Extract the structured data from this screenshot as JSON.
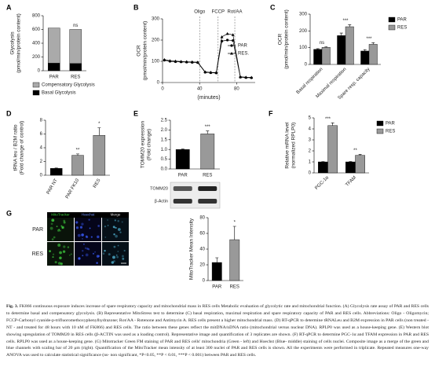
{
  "chart_data": [
    {
      "type": "bar",
      "stacked": true,
      "panel_label": "A",
      "ylabel": [
        "Glycolysis",
        "(pmol/min/protein content)"
      ],
      "categories": [
        "PAR",
        "RES"
      ],
      "ylim": [
        0,
        800
      ],
      "yticks": [
        0,
        200,
        400,
        600,
        800
      ],
      "series": [
        {
          "name": "Compensatory Glycolysis",
          "color": "#aaaaaa",
          "values": [
            510,
            495
          ],
          "annotations": [
            null,
            "ns"
          ]
        },
        {
          "name": "Basal Glycolysis",
          "color": "#000000",
          "values": [
            110,
            105
          ],
          "annotations": [
            null,
            "ns"
          ]
        }
      ]
    },
    {
      "type": "line",
      "panel_label": "B",
      "ylabel": [
        "OCR",
        "(pmol/min/protein content)"
      ],
      "xlabel": "(minutes)",
      "xlim": [
        0,
        100
      ],
      "xticks": [
        0,
        40,
        80
      ],
      "ylim": [
        0,
        300
      ],
      "yticks": [
        0,
        100,
        200,
        300
      ],
      "events": [
        {
          "x": 40,
          "label": "Oligo"
        },
        {
          "x": 60,
          "label": "FCCP"
        },
        {
          "x": 78,
          "label": "Rot/AA"
        }
      ],
      "x": [
        2,
        8,
        14,
        20,
        26,
        32,
        38,
        46,
        52,
        58,
        64,
        70,
        76,
        84,
        90,
        96
      ],
      "series": [
        {
          "name": "PAR",
          "color": "#000000",
          "marker": "circle",
          "values": [
            105,
            100,
            98,
            97,
            96,
            95,
            94,
            48,
            46,
            45,
            195,
            200,
            198,
            25,
            23,
            22
          ]
        },
        {
          "name": "RES.",
          "color": "#000000",
          "marker": "triangle",
          "values": [
            108,
            103,
            101,
            99,
            98,
            97,
            96,
            50,
            48,
            47,
            215,
            230,
            225,
            27,
            25,
            24
          ]
        }
      ]
    },
    {
      "type": "bar",
      "panel_label": "C",
      "ylabel": [
        "OCR",
        "(pmol/min/protein content)"
      ],
      "categories": [
        "Basal respiration",
        "Maximal respiration",
        "Spare resp. capacity"
      ],
      "ylim": [
        0,
        300
      ],
      "yticks": [
        0,
        100,
        200,
        300
      ],
      "annotations": [
        "ns",
        "***",
        "***"
      ],
      "series": [
        {
          "name": "PAR",
          "color": "#000000",
          "values": [
            90,
            172,
            80
          ],
          "errors": [
            4,
            15,
            8
          ]
        },
        {
          "name": "RES",
          "color": "#999999",
          "values": [
            102,
            225,
            120
          ],
          "errors": [
            4,
            12,
            10
          ]
        }
      ]
    },
    {
      "type": "bar",
      "panel_label": "D",
      "ylabel": [
        "tRNA leu / B2M ratio",
        "(Fold change of control)"
      ],
      "categories": [
        "PAR NT",
        "PAR FK10",
        "RES"
      ],
      "values": [
        1,
        2.9,
        5.8
      ],
      "errors": [
        0.05,
        0.2,
        1.1
      ],
      "colors": [
        "#000000",
        "#999999",
        "#999999"
      ],
      "annotations": [
        null,
        "**",
        "*"
      ],
      "ylim": [
        0,
        8
      ],
      "yticks": [
        0,
        2,
        4,
        6,
        8
      ]
    },
    {
      "type": "bar",
      "panel_label": "E",
      "ylabel": [
        "TOMM20 expression",
        "(Fold change)"
      ],
      "categories": [
        "PAR",
        "RES"
      ],
      "values": [
        1.0,
        1.8
      ],
      "errors": [
        0.02,
        0.15
      ],
      "colors": [
        "#000000",
        "#999999"
      ],
      "annotations": [
        null,
        "***"
      ],
      "ylim": [
        0,
        2.5
      ],
      "yticks": [
        {
          "value": 0,
          "label": "0.0"
        },
        {
          "value": 0.5,
          "label": "0.5"
        },
        {
          "value": 1,
          "label": "1.0"
        },
        {
          "value": 1.5,
          "label": "1.5"
        },
        {
          "value": 2,
          "label": "2.0"
        },
        {
          "value": 2.5,
          "label": "2.5"
        }
      ]
    },
    {
      "type": "bar",
      "panel_label": "F",
      "ylabel": [
        "Relative mRNA level",
        "(normalized RPLP0)"
      ],
      "categories": [
        "PGC-1α",
        "TFAM"
      ],
      "annotations": [
        "***",
        "**"
      ],
      "ylim": [
        0,
        5
      ],
      "yticks": [
        0,
        1,
        2,
        3,
        4,
        5
      ],
      "series": [
        {
          "name": "PAR",
          "color": "#000000",
          "values": [
            1.0,
            1.0
          ],
          "errors": [
            0.02,
            0.03
          ]
        },
        {
          "name": "RES",
          "color": "#999999",
          "values": [
            4.3,
            1.6
          ],
          "errors": [
            0.25,
            0.08
          ]
        }
      ]
    },
    {
      "type": "bar",
      "ylabel": [
        "MitoTracker Mean Intensity"
      ],
      "categories": [
        "PAR",
        "RES"
      ],
      "values": [
        23,
        52
      ],
      "errors": [
        6,
        17
      ],
      "colors": [
        "#000000",
        "#999999"
      ],
      "annotations": [
        null,
        "*"
      ],
      "ylim": [
        0,
        80
      ],
      "yticks": [
        0,
        20,
        40,
        60,
        80
      ]
    }
  ],
  "blot": {
    "labels": [
      "TOMM20",
      "β-Actin"
    ]
  },
  "micrograph": {
    "panel_label": "G",
    "columns": [
      "MitoTracker",
      "Hoechst",
      "Merge"
    ],
    "rows": [
      "PAR",
      "RES"
    ]
  },
  "caption": {
    "label": "Fig. 3.",
    "text": "FK866 continuous exposure induces increase of spare respiratory capacity and mitochondrial mass in RES cells Metabolic evaluation of glycolytic rate and mitochondrial function. (A) Glycolysis rate assay of PAR and RES cells to determine basal and compensatory glycolysis. (B) Representative MitoStress test to determine (C) basal respiration, maximal respiration and spare respiratory capacity of PAR and RES cells. Abbreviations: Oligo - Oligomycin; FCCP-Carbonyl cyanide-p-trifluoromethoxyphenylhydrazone; Rot/AA - Rotenone and Antimycin A. RES cells present a higher mitochondrial mass. (D) RT-qPCR to determine tRNALeu and B2M expression in PAR cells (non treated - NT - and treated for 48 hours with 10 nM of FK866) and RES cells. The ratio between these genes reflect the mitDNA/nDNA ratio (mitochondrial versus nuclear DNA). RPLP0 was used as a house-keeping gene. (E) Western blot showing upregulation of TOMM20 in RES cells (β-ACTIN was used as a loading control). Representative image and quantification of 3 replicates are shown. (F) RT-qPCR to determine PGC-1α and TFAM expression in PAR and RES cells. RPLP0 was used as a house-keeping gene. (G) Mitotracker Green FM staining of PAR and RES cells' mitochondria (Green - left) and Hoechst (Blue- middle) staining of cells nuclei. Composite image as a merge of the green and blue channels with scaling bar of 20 μm (right). Quantification of the MitoTracker mean intensity of at least 300 nuclei of PAR and RES cells is shown. All the experiments were performed in triplicate. Repeated measures one-way ANOVA was used to calculate statistical significance (ns- non significant, *P<0.05, **P < 0.01, ***P < 0.001) between PAR and RES cells."
  }
}
